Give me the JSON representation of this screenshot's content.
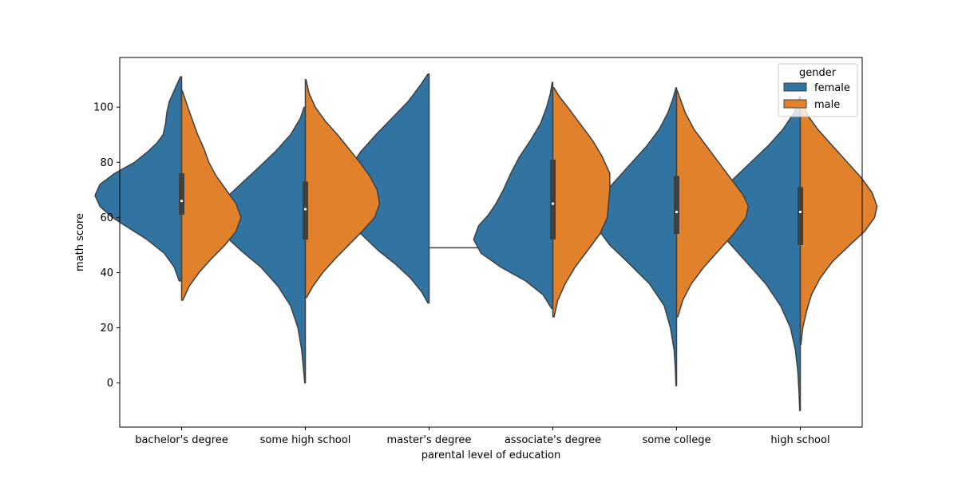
{
  "chart_data": {
    "type": "violin",
    "split": true,
    "xlabel": "parental level of education",
    "ylabel": "math score",
    "categories": [
      "bachelor's degree",
      "some high school",
      "master's degree",
      "associate's degree",
      "some college",
      "high school"
    ],
    "yticks": [
      0,
      20,
      40,
      60,
      80,
      100
    ],
    "ylim": [
      -16,
      118
    ],
    "grid": false,
    "legend": {
      "title": "gender",
      "placement": "top-right",
      "entries": [
        {
          "name": "female",
          "color": "#3274a1"
        },
        {
          "name": "male",
          "color": "#e1812c"
        }
      ]
    },
    "series": [
      {
        "name": "female",
        "color": "#3274a1",
        "violins": [
          {
            "category": "bachelor's degree",
            "min": 37,
            "max": 111,
            "profile": [
              [
                37,
                0.02
              ],
              [
                42,
                0.06
              ],
              [
                47,
                0.14
              ],
              [
                52,
                0.28
              ],
              [
                56,
                0.42
              ],
              [
                60,
                0.56
              ],
              [
                64,
                0.66
              ],
              [
                68,
                0.7
              ],
              [
                72,
                0.66
              ],
              [
                76,
                0.54
              ],
              [
                80,
                0.38
              ],
              [
                84,
                0.27
              ],
              [
                87,
                0.2
              ],
              [
                90,
                0.15
              ],
              [
                94,
                0.13
              ],
              [
                98,
                0.12
              ],
              [
                102,
                0.1
              ],
              [
                106,
                0.06
              ],
              [
                109,
                0.03
              ],
              [
                111,
                0.01
              ]
            ]
          },
          {
            "category": "some high school",
            "min": 0,
            "max": 100,
            "profile": [
              [
                0,
                0.005
              ],
              [
                5,
                0.015
              ],
              [
                12,
                0.03
              ],
              [
                20,
                0.06
              ],
              [
                28,
                0.12
              ],
              [
                35,
                0.22
              ],
              [
                42,
                0.36
              ],
              [
                48,
                0.52
              ],
              [
                53,
                0.64
              ],
              [
                58,
                0.7
              ],
              [
                63,
                0.7
              ],
              [
                68,
                0.62
              ],
              [
                73,
                0.5
              ],
              [
                78,
                0.38
              ],
              [
                84,
                0.24
              ],
              [
                90,
                0.12
              ],
              [
                96,
                0.04
              ],
              [
                100,
                0.01
              ]
            ]
          },
          {
            "category": "master's degree",
            "min": 29,
            "max": 112,
            "profile": [
              [
                29,
                0.01
              ],
              [
                33,
                0.06
              ],
              [
                38,
                0.15
              ],
              [
                43,
                0.27
              ],
              [
                48,
                0.41
              ],
              [
                54,
                0.55
              ],
              [
                60,
                0.62
              ],
              [
                66,
                0.66
              ],
              [
                72,
                0.68
              ],
              [
                78,
                0.64
              ],
              [
                84,
                0.55
              ],
              [
                90,
                0.43
              ],
              [
                96,
                0.3
              ],
              [
                102,
                0.17
              ],
              [
                108,
                0.07
              ],
              [
                112,
                0.01
              ]
            ]
          },
          {
            "category": "associate's degree",
            "min": 27,
            "max": 109,
            "profile": [
              [
                27,
                0.01
              ],
              [
                32,
                0.08
              ],
              [
                37,
                0.22
              ],
              [
                42,
                0.42
              ],
              [
                47,
                0.58
              ],
              [
                52,
                0.64
              ],
              [
                57,
                0.6
              ],
              [
                61,
                0.52
              ],
              [
                65,
                0.46
              ],
              [
                70,
                0.4
              ],
              [
                76,
                0.34
              ],
              [
                82,
                0.27
              ],
              [
                88,
                0.18
              ],
              [
                94,
                0.1
              ],
              [
                100,
                0.05
              ],
              [
                105,
                0.02
              ],
              [
                109,
                0.005
              ]
            ]
          },
          {
            "category": "some college",
            "min": -1,
            "max": 107,
            "profile": [
              [
                -1,
                0.005
              ],
              [
                5,
                0.01
              ],
              [
                12,
                0.02
              ],
              [
                20,
                0.05
              ],
              [
                28,
                0.1
              ],
              [
                36,
                0.22
              ],
              [
                44,
                0.4
              ],
              [
                50,
                0.54
              ],
              [
                56,
                0.64
              ],
              [
                62,
                0.66
              ],
              [
                68,
                0.6
              ],
              [
                74,
                0.48
              ],
              [
                80,
                0.36
              ],
              [
                86,
                0.24
              ],
              [
                92,
                0.14
              ],
              [
                98,
                0.07
              ],
              [
                103,
                0.03
              ],
              [
                107,
                0.005
              ]
            ]
          },
          {
            "category": "high school",
            "min": -10,
            "max": 104,
            "profile": [
              [
                -10,
                0.005
              ],
              [
                -4,
                0.01
              ],
              [
                4,
                0.02
              ],
              [
                12,
                0.04
              ],
              [
                20,
                0.08
              ],
              [
                28,
                0.16
              ],
              [
                36,
                0.28
              ],
              [
                44,
                0.44
              ],
              [
                52,
                0.6
              ],
              [
                58,
                0.7
              ],
              [
                63,
                0.72
              ],
              [
                68,
                0.66
              ],
              [
                74,
                0.54
              ],
              [
                80,
                0.4
              ],
              [
                86,
                0.26
              ],
              [
                92,
                0.14
              ],
              [
                98,
                0.05
              ],
              [
                104,
                0.005
              ]
            ]
          }
        ]
      },
      {
        "name": "male",
        "color": "#e1812c",
        "violins": [
          {
            "category": "bachelor's degree",
            "min": 30,
            "max": 106,
            "profile": [
              [
                30,
                0.01
              ],
              [
                35,
                0.06
              ],
              [
                40,
                0.14
              ],
              [
                45,
                0.24
              ],
              [
                50,
                0.35
              ],
              [
                55,
                0.44
              ],
              [
                60,
                0.48
              ],
              [
                65,
                0.44
              ],
              [
                70,
                0.36
              ],
              [
                75,
                0.28
              ],
              [
                80,
                0.22
              ],
              [
                85,
                0.18
              ],
              [
                90,
                0.13
              ],
              [
                95,
                0.09
              ],
              [
                100,
                0.05
              ],
              [
                104,
                0.02
              ],
              [
                106,
                0.005
              ]
            ]
          },
          {
            "category": "some high school",
            "min": 31,
            "max": 110,
            "profile": [
              [
                31,
                0.01
              ],
              [
                35,
                0.06
              ],
              [
                40,
                0.14
              ],
              [
                45,
                0.24
              ],
              [
                50,
                0.35
              ],
              [
                55,
                0.46
              ],
              [
                60,
                0.56
              ],
              [
                65,
                0.6
              ],
              [
                70,
                0.58
              ],
              [
                75,
                0.52
              ],
              [
                80,
                0.44
              ],
              [
                85,
                0.35
              ],
              [
                90,
                0.26
              ],
              [
                95,
                0.16
              ],
              [
                100,
                0.08
              ],
              [
                105,
                0.03
              ],
              [
                110,
                0.005
              ]
            ]
          },
          {
            "category": "master's degree",
            "single_value": 49,
            "half_width": 0.4
          },
          {
            "category": "associate's degree",
            "min": 24,
            "max": 107,
            "profile": [
              [
                24,
                0.01
              ],
              [
                30,
                0.04
              ],
              [
                36,
                0.1
              ],
              [
                42,
                0.18
              ],
              [
                48,
                0.28
              ],
              [
                54,
                0.38
              ],
              [
                60,
                0.44
              ],
              [
                65,
                0.45
              ],
              [
                70,
                0.46
              ],
              [
                76,
                0.46
              ],
              [
                82,
                0.4
              ],
              [
                88,
                0.32
              ],
              [
                94,
                0.22
              ],
              [
                100,
                0.12
              ],
              [
                104,
                0.05
              ],
              [
                107,
                0.01
              ]
            ]
          },
          {
            "category": "some college",
            "min": 24,
            "max": 106,
            "profile": [
              [
                24,
                0.01
              ],
              [
                30,
                0.05
              ],
              [
                36,
                0.12
              ],
              [
                42,
                0.22
              ],
              [
                48,
                0.34
              ],
              [
                54,
                0.46
              ],
              [
                60,
                0.56
              ],
              [
                64,
                0.58
              ],
              [
                68,
                0.54
              ],
              [
                74,
                0.44
              ],
              [
                80,
                0.34
              ],
              [
                86,
                0.24
              ],
              [
                92,
                0.14
              ],
              [
                98,
                0.07
              ],
              [
                103,
                0.03
              ],
              [
                106,
                0.005
              ]
            ]
          },
          {
            "category": "high school",
            "min": 14,
            "max": 102,
            "profile": [
              [
                14,
                0.005
              ],
              [
                20,
                0.02
              ],
              [
                26,
                0.05
              ],
              [
                32,
                0.09
              ],
              [
                38,
                0.16
              ],
              [
                44,
                0.26
              ],
              [
                50,
                0.4
              ],
              [
                55,
                0.52
              ],
              [
                60,
                0.6
              ],
              [
                64,
                0.62
              ],
              [
                69,
                0.58
              ],
              [
                74,
                0.5
              ],
              [
                80,
                0.38
              ],
              [
                86,
                0.26
              ],
              [
                92,
                0.14
              ],
              [
                97,
                0.06
              ],
              [
                102,
                0.01
              ]
            ]
          }
        ]
      }
    ],
    "boxes": [
      {
        "category": "bachelor's degree",
        "q1": 61,
        "median": 66,
        "q3": 76
      },
      {
        "category": "some high school",
        "q1": 52,
        "median": 63,
        "q3": 73
      },
      {
        "category": "master's degree",
        "q1": null,
        "median": null,
        "q3": null
      },
      {
        "category": "associate's degree",
        "q1": 52,
        "median": 65,
        "q3": 81
      },
      {
        "category": "some college",
        "q1": 54,
        "median": 62,
        "q3": 75
      },
      {
        "category": "high school",
        "q1": 50,
        "median": 62,
        "q3": 71
      }
    ]
  }
}
